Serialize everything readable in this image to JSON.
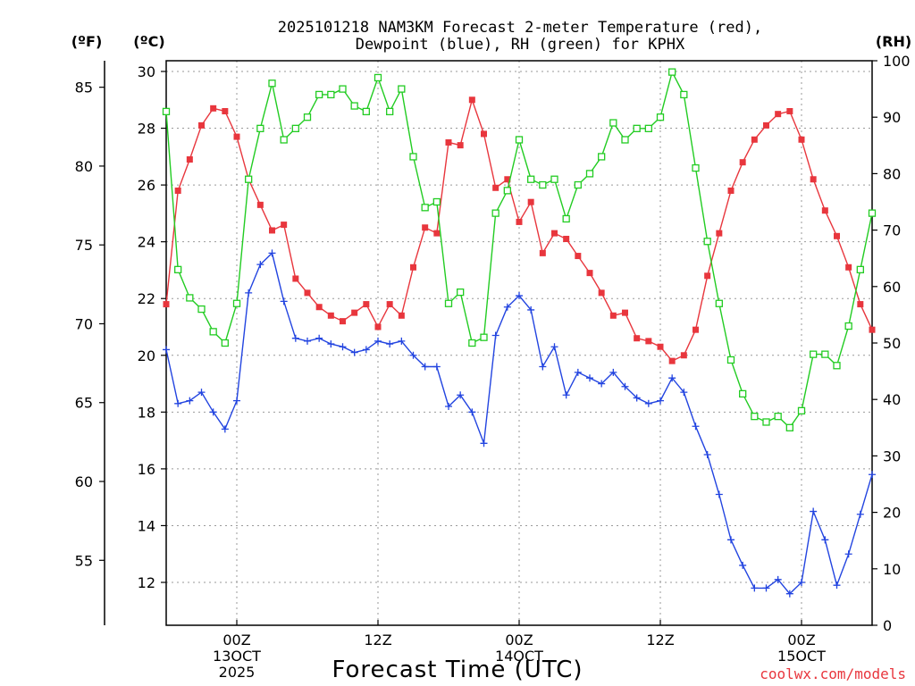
{
  "chart_data": {
    "type": "line",
    "title_line1": "2025101218 NAM3KM Forecast 2-meter Temperature (red),",
    "title_line2": "Dewpoint (blue), RH (green) for KPHX",
    "unit_labels": {
      "fahrenheit": "(ºF)",
      "celsius": "(ºC)",
      "rh": "(RH)"
    },
    "xlabel": "Forecast Time (UTC)",
    "credit": "coolwx.com/models",
    "x_ticks": [
      {
        "hour": 6,
        "line1": "00Z",
        "line2": "13OCT",
        "line3": "2025"
      },
      {
        "hour": 18,
        "line1": "12Z",
        "line2": "",
        "line3": ""
      },
      {
        "hour": 30,
        "line1": "00Z",
        "line2": "14OCT",
        "line3": ""
      },
      {
        "hour": 42,
        "line1": "12Z",
        "line2": "",
        "line3": ""
      },
      {
        "hour": 54,
        "line1": "00Z",
        "line2": "15OCT",
        "line3": ""
      }
    ],
    "x_range_hours": [
      0,
      60
    ],
    "celsius_range": [
      10,
      30
    ],
    "celsius_ticks": [
      "12",
      "14",
      "16",
      "18",
      "20",
      "22",
      "24",
      "26",
      "28",
      "30"
    ],
    "fahrenheit_ticks": [
      "55",
      "60",
      "65",
      "70",
      "75",
      "80",
      "85"
    ],
    "rh_range": [
      0,
      100
    ],
    "rh_ticks": [
      "0",
      "10",
      "20",
      "30",
      "40",
      "50",
      "60",
      "70",
      "80",
      "90",
      "100"
    ],
    "grid": true,
    "colors": {
      "temperature": "#e8363d",
      "dewpoint": "#2244e0",
      "rh": "#22cc22",
      "credit": "#e8363d",
      "axis": "#000000",
      "grid": "#999999"
    },
    "series": [
      {
        "name": "Temperature",
        "units": "C",
        "marker": "filled-square",
        "color": "#e8363d",
        "values": [
          21.8,
          25.8,
          26.9,
          28.1,
          28.7,
          28.6,
          27.7,
          26.2,
          25.3,
          24.4,
          24.6,
          22.7,
          22.2,
          21.7,
          21.4,
          21.2,
          21.5,
          21.8,
          21.0,
          21.8,
          21.4,
          23.1,
          24.5,
          24.3,
          27.5,
          27.4,
          29.0,
          27.8,
          25.9,
          26.2,
          24.7,
          25.4,
          23.6,
          24.3,
          24.1,
          23.5,
          22.9,
          22.2,
          21.4,
          21.5,
          20.6,
          20.5,
          20.3,
          19.8,
          20.0,
          20.9,
          22.8,
          24.3,
          25.8,
          26.8,
          27.6,
          28.1,
          28.5,
          28.6,
          27.6,
          26.2,
          25.1,
          24.2,
          23.1,
          21.8,
          20.9
        ]
      },
      {
        "name": "Dewpoint",
        "units": "C",
        "marker": "plus",
        "color": "#2244e0",
        "values": [
          20.2,
          18.3,
          18.4,
          18.7,
          18.0,
          17.4,
          18.4,
          22.2,
          23.2,
          23.6,
          21.9,
          20.6,
          20.5,
          20.6,
          20.4,
          20.3,
          20.1,
          20.2,
          20.5,
          20.4,
          20.5,
          20.0,
          19.6,
          19.6,
          18.2,
          18.6,
          18.0,
          16.9,
          20.7,
          21.7,
          22.1,
          21.6,
          19.6,
          20.3,
          18.6,
          19.4,
          19.2,
          19.0,
          19.4,
          18.9,
          18.5,
          18.3,
          18.4,
          19.2,
          18.7,
          17.5,
          16.5,
          15.1,
          13.5,
          12.6,
          11.8,
          11.8,
          12.1,
          11.6,
          12.0,
          14.5,
          13.5,
          11.9,
          13.0,
          14.4,
          15.8
        ]
      },
      {
        "name": "RH",
        "units": "%",
        "marker": "open-square",
        "color": "#22cc22",
        "values": [
          91,
          63,
          58,
          56,
          52,
          50,
          57,
          79,
          88,
          96,
          86,
          88,
          90,
          94,
          94,
          95,
          92,
          91,
          97,
          91,
          95,
          83,
          74,
          75,
          57,
          59,
          50,
          51,
          73,
          77,
          86,
          79,
          78,
          79,
          72,
          78,
          80,
          83,
          89,
          86,
          88,
          88,
          90,
          98,
          94,
          81,
          68,
          57,
          47,
          41,
          37,
          36,
          37,
          35,
          38,
          48,
          48,
          46,
          53,
          63,
          73
        ]
      }
    ]
  }
}
